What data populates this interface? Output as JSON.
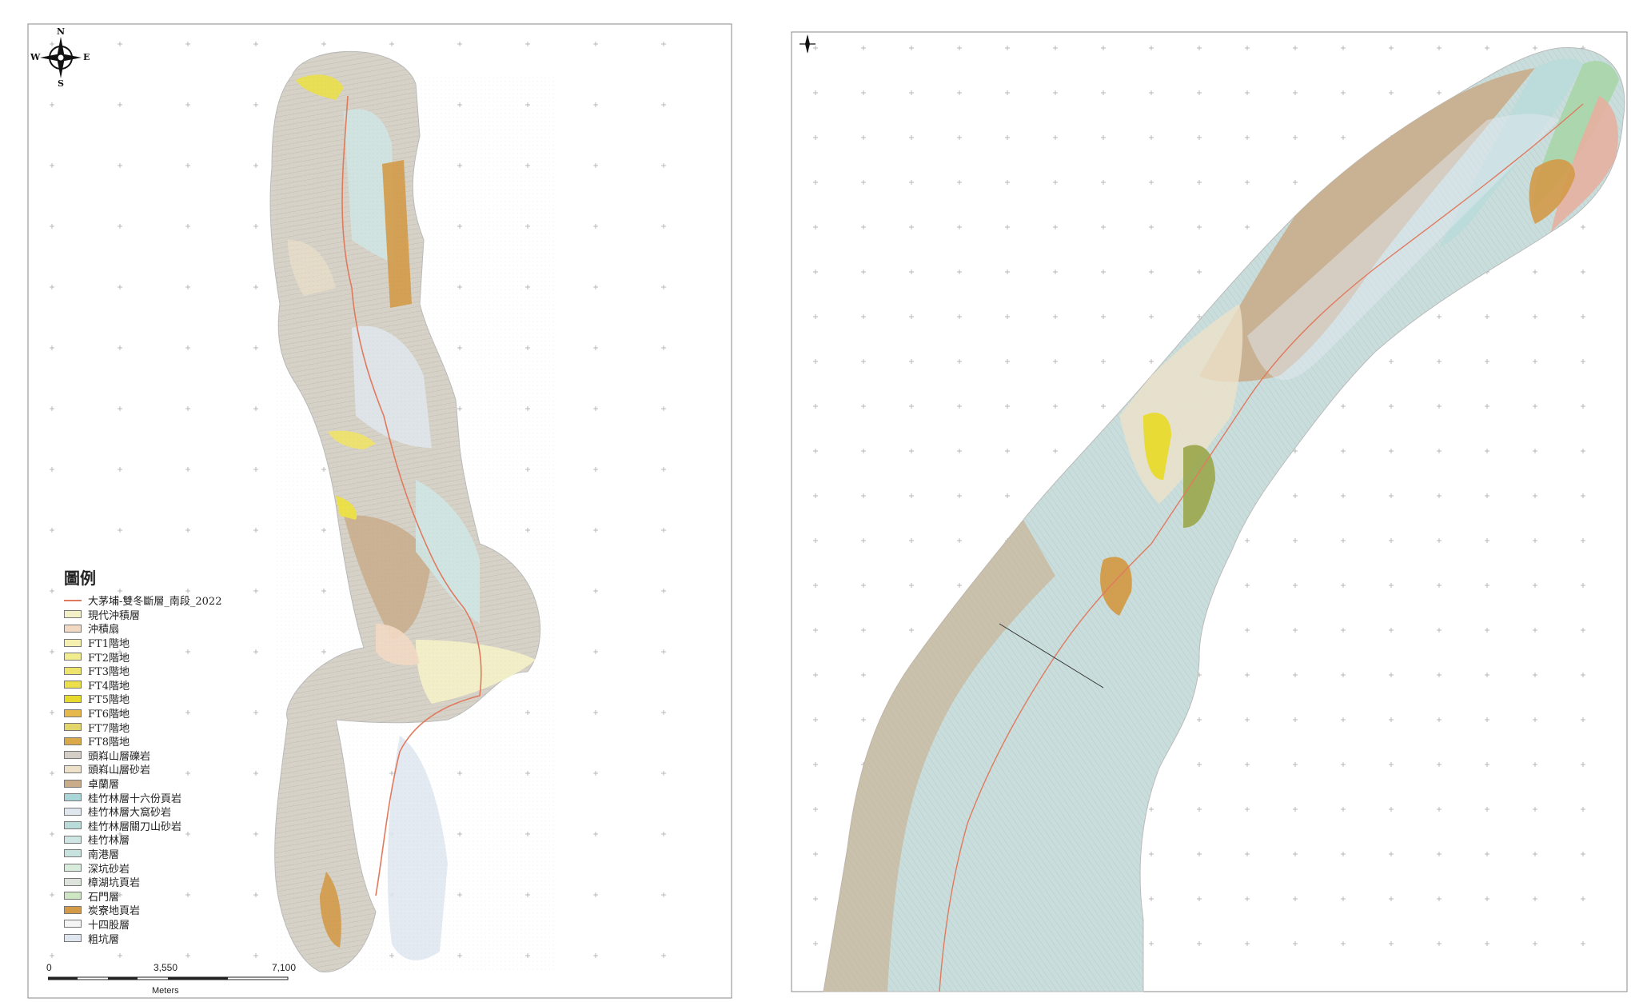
{
  "left_map": {
    "compass": {
      "n": "N",
      "s": "S",
      "e": "E",
      "w": "W"
    },
    "legend": {
      "title": "圖例",
      "items": [
        {
          "label": "大茅埔-雙冬斷層_南段_2022",
          "kind": "line",
          "color": "#e07a5f"
        },
        {
          "label": "現代沖積層",
          "kind": "area",
          "color": "#f3f0c8"
        },
        {
          "label": "沖積扇",
          "kind": "area",
          "color": "#f2d9c4"
        },
        {
          "label": "FT1階地",
          "kind": "area",
          "color": "#f5f0b0"
        },
        {
          "label": "FT2階地",
          "kind": "area",
          "color": "#f1ec8e"
        },
        {
          "label": "FT3階地",
          "kind": "area",
          "color": "#eee36d"
        },
        {
          "label": "FT4階地",
          "kind": "area",
          "color": "#ebe04a"
        },
        {
          "label": "FT5階地",
          "kind": "area",
          "color": "#e8da2c"
        },
        {
          "label": "FT6階地",
          "kind": "area",
          "color": "#e7b84c"
        },
        {
          "label": "FT7階地",
          "kind": "area",
          "color": "#e3d56a"
        },
        {
          "label": "FT8階地",
          "kind": "area",
          "color": "#d9a94a"
        },
        {
          "label": "頭嵙山層礫岩",
          "kind": "area",
          "color": "#d3cfc6"
        },
        {
          "label": "頭嵙山層砂岩",
          "kind": "area",
          "color": "#eee1c9"
        },
        {
          "label": "卓蘭層",
          "kind": "area",
          "color": "#c9ad8b"
        },
        {
          "label": "桂竹林層十六份頁岩",
          "kind": "area",
          "color": "#a9d6d8"
        },
        {
          "label": "桂竹林層大窩砂岩",
          "kind": "area",
          "color": "#e1e7ef"
        },
        {
          "label": "桂竹林層關刀山砂岩",
          "kind": "area",
          "color": "#b9dbd9"
        },
        {
          "label": "桂竹林層",
          "kind": "area",
          "color": "#cfe6e4"
        },
        {
          "label": "南港層",
          "kind": "area",
          "color": "#c6e3df"
        },
        {
          "label": "深坑砂岩",
          "kind": "area",
          "color": "#d8ecdc"
        },
        {
          "label": "樟湖坑頁岩",
          "kind": "area",
          "color": "#dde4dc"
        },
        {
          "label": "石門層",
          "kind": "area",
          "color": "#cfe6c4"
        },
        {
          "label": "炭寮地頁岩",
          "kind": "area",
          "color": "#d39a48"
        },
        {
          "label": "十四股層",
          "kind": "area",
          "color": "#f4f4f4"
        },
        {
          "label": "粗坑層",
          "kind": "area",
          "color": "#dfe6f0"
        }
      ]
    },
    "scale": {
      "labels": [
        "0",
        "3,550",
        "7,100"
      ],
      "units": "Meters"
    }
  },
  "right_map": {
    "north_arrow": "north-arrow"
  },
  "colors": {
    "fault_line": "#e07a5f",
    "hillshade": "#cfcbc2",
    "grid": "#999999"
  }
}
